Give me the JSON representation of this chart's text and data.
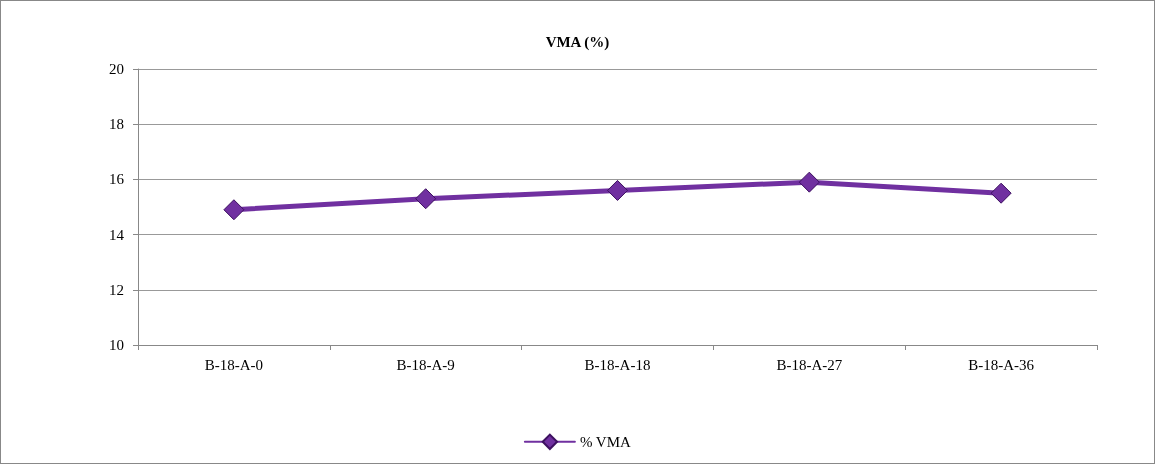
{
  "chart_data": {
    "type": "line",
    "title": "VMA (%)",
    "categories": [
      "B-18-A-0",
      "B-18-A-9",
      "B-18-A-18",
      "B-18-A-27",
      "B-18-A-36"
    ],
    "series": [
      {
        "name": "% VMA",
        "color": "#7030a0",
        "values": [
          14.9,
          15.3,
          15.6,
          15.9,
          15.5
        ]
      }
    ],
    "ylim": [
      10,
      20
    ],
    "yticks": [
      10,
      12,
      14,
      16,
      18,
      20
    ],
    "grid": "y",
    "legend": "bottom",
    "marker": "diamond",
    "line_style": "solid"
  }
}
